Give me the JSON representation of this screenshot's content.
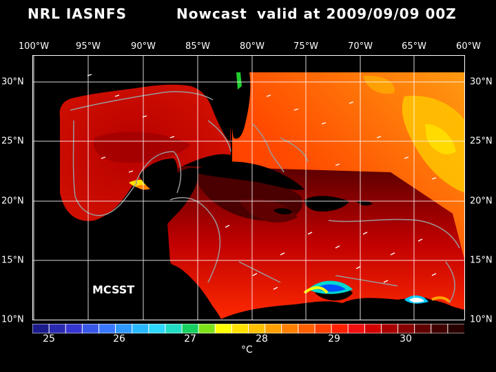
{
  "title": {
    "left": "NRL IASNFS",
    "middle": "Nowcast",
    "right": "valid at 2009/09/09 00Z"
  },
  "lon_labels": [
    "100°W",
    "95°W",
    "90°W",
    "85°W",
    "80°W",
    "75°W",
    "70°W",
    "65°W",
    "60°W"
  ],
  "lat_labels": [
    "30°N",
    "25°N",
    "20°N",
    "15°N",
    "10°N"
  ],
  "overlay_label": "MCSST",
  "colorbar": {
    "tick_labels": [
      "25",
      "26",
      "27",
      "28",
      "29",
      "30"
    ],
    "unit": "°C",
    "colors": [
      "#1b1b8c",
      "#2a2ab0",
      "#3636d0",
      "#3a58e8",
      "#3a78ff",
      "#2f98ff",
      "#29b8ff",
      "#2fd8ff",
      "#22dcc4",
      "#18d060",
      "#7ee21a",
      "#ffff00",
      "#ffe000",
      "#ffc000",
      "#ffa000",
      "#ff8000",
      "#ff6000",
      "#ff4000",
      "#ff2000",
      "#f01010",
      "#d00000",
      "#a80000",
      "#880000",
      "#600000",
      "#400000",
      "#280000"
    ]
  },
  "colors": {
    "background": "#000000",
    "land": "#000000",
    "grid": "#ffffff",
    "isobath": "#9a9a9a"
  },
  "icons": {
    "wind_arrows": "white-dash-arrows"
  }
}
